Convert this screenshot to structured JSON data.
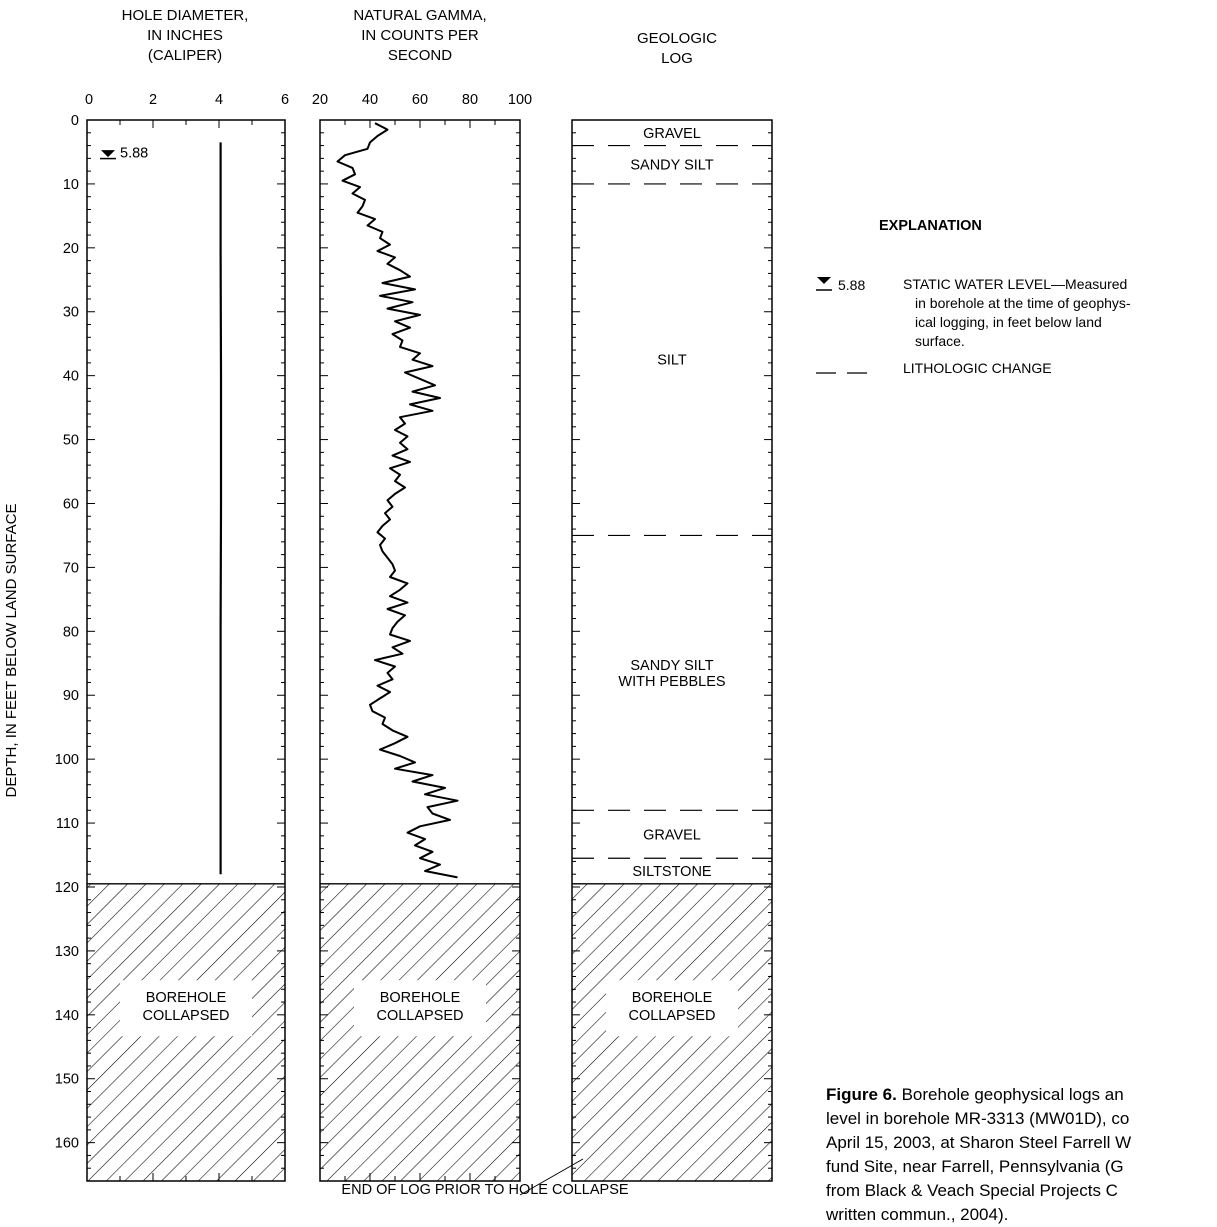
{
  "chart_data": {
    "type": "line",
    "y_axis": {
      "label": "DEPTH, IN FEET BELOW LAND SURFACE",
      "range": [
        0,
        166
      ],
      "ticks": [
        0,
        10,
        20,
        30,
        40,
        50,
        60,
        70,
        80,
        90,
        100,
        110,
        120,
        130,
        140,
        150,
        160
      ],
      "tick_labels": [
        "0",
        "10",
        "20",
        "30",
        "40",
        "50",
        "60",
        "70",
        "80",
        "90",
        "100",
        "110",
        "120",
        "130",
        "140",
        "150",
        "160"
      ],
      "inverted": true
    },
    "tracks": [
      {
        "title_lines": [
          "HOLE DIAMETER,",
          "IN INCHES",
          "(CALIPER)"
        ],
        "x_range": [
          0,
          6
        ],
        "x_ticks": [
          0,
          2,
          4,
          6
        ],
        "x_tick_labels": [
          "0",
          "2",
          "4",
          "6"
        ],
        "series": {
          "depth": [
            3.5,
            20,
            40,
            60,
            80,
            100,
            118
          ],
          "value": [
            4.05,
            4.05,
            4.06,
            4.06,
            4.05,
            4.05,
            4.05
          ]
        },
        "collapsed_label_lines": [
          "BOREHOLE",
          "COLLAPSED"
        ]
      },
      {
        "title_lines": [
          "NATURAL GAMMA,",
          "IN COUNTS PER",
          "SECOND"
        ],
        "x_range": [
          20,
          100
        ],
        "x_ticks": [
          20,
          40,
          60,
          80,
          100
        ],
        "x_tick_labels": [
          "20",
          "40",
          "60",
          "80",
          "100"
        ],
        "series": {
          "depth": [
            0.5,
            1.5,
            2.5,
            3.5,
            4.5,
            5.5,
            6.5,
            7.5,
            8.5,
            9.5,
            10.5,
            11.5,
            12.5,
            13.5,
            14.5,
            15.5,
            16.5,
            17.5,
            18.5,
            19.5,
            20.5,
            21.5,
            22.5,
            23.5,
            24.5,
            25.5,
            26.5,
            27.5,
            28.5,
            29.5,
            30.5,
            31.5,
            32.5,
            33.5,
            34.5,
            35.5,
            36.5,
            37.5,
            38.5,
            39.5,
            40.5,
            41.5,
            42.5,
            43.5,
            44.5,
            45.5,
            46.5,
            47.5,
            48.5,
            49.5,
            50.5,
            51.5,
            52.5,
            53.5,
            54.5,
            55.5,
            56.5,
            57.5,
            58.5,
            59.5,
            60.5,
            61.5,
            62.5,
            63.5,
            64.5,
            65.5,
            66.5,
            67.5,
            68.5,
            69.5,
            70.5,
            71.5,
            72.5,
            73.5,
            74.5,
            75.5,
            76.5,
            77.5,
            78.5,
            79.5,
            80.5,
            81.5,
            82.5,
            83.5,
            84.5,
            85.5,
            86.5,
            87.5,
            88.5,
            89.5,
            90.5,
            91.5,
            92.5,
            93.5,
            94.5,
            95.5,
            96.5,
            97.5,
            98.5,
            99.5,
            100.5,
            101.5,
            102.5,
            103.5,
            104.5,
            105.5,
            106.5,
            107.5,
            108.5,
            109.5,
            110.5,
            111.5,
            112.5,
            113.5,
            114.5,
            115.5,
            116.5,
            117.5,
            118.5
          ],
          "value": [
            42,
            47,
            43,
            40,
            39,
            30,
            27,
            33,
            34,
            29,
            36,
            33,
            38,
            37,
            35,
            42,
            39,
            45,
            44,
            48,
            43,
            50,
            47,
            52,
            56,
            45,
            58,
            44,
            57,
            47,
            60,
            50,
            56,
            49,
            53,
            52,
            60,
            57,
            65,
            54,
            60,
            66,
            57,
            68,
            56,
            65,
            52,
            54,
            50,
            55,
            52,
            55,
            49,
            56,
            48,
            52,
            50,
            54,
            50,
            47,
            49,
            46,
            48,
            45,
            43,
            46,
            44,
            45,
            47,
            49,
            50,
            48,
            55,
            52,
            48,
            55,
            47,
            54,
            51,
            49,
            48,
            56,
            49,
            53,
            42,
            50,
            47,
            49,
            43,
            48,
            44,
            40,
            41,
            46,
            45,
            49,
            55,
            50,
            44,
            52,
            58,
            50,
            65,
            57,
            70,
            62,
            75,
            63,
            65,
            72,
            60,
            55,
            62,
            58,
            65,
            60,
            68,
            62,
            75
          ]
        },
        "collapsed_label_lines": [
          "BOREHOLE",
          "COLLAPSED"
        ]
      },
      {
        "title_lines": [
          "GEOLOGIC",
          "LOG"
        ],
        "units": [
          {
            "top": 0,
            "bottom": 4,
            "label_lines": [
              "GRAVEL"
            ]
          },
          {
            "top": 4,
            "bottom": 10,
            "label_lines": [
              "SANDY SILT"
            ]
          },
          {
            "top": 10,
            "bottom": 65,
            "label_lines": [
              "SILT"
            ]
          },
          {
            "top": 65,
            "bottom": 108,
            "label_lines": [
              "SANDY SILT",
              "WITH PEBBLES"
            ]
          },
          {
            "top": 108,
            "bottom": 115.5,
            "label_lines": [
              "GRAVEL"
            ]
          },
          {
            "top": 115.5,
            "bottom": 119.5,
            "label_lines": [
              "SILTSTONE"
            ]
          }
        ],
        "collapsed_label_lines": [
          "BOREHOLE",
          "COLLAPSED"
        ]
      }
    ],
    "collapse_depth": 119.5,
    "water_level": {
      "depth": 5.88,
      "label": "5.88"
    },
    "annotation": "END OF LOG PRIOR TO HOLE COLLAPSE",
    "legend": {
      "title": "EXPLANATION",
      "placement": "right",
      "items": [
        {
          "symbol": "water-level-triangle",
          "symbol_label": "5.88",
          "lines": [
            "STATIC WATER LEVEL—Measured",
            "in borehole at the time of geophys-",
            "ical logging, in feet below land",
            "surface."
          ]
        },
        {
          "symbol": "dashed-line",
          "lines": [
            "LITHOLOGIC CHANGE"
          ]
        }
      ]
    }
  },
  "caption": {
    "label": "Figure 6.",
    "lines": [
      " Borehole geophysical logs an",
      "level in borehole MR-3313 (MW01D), co",
      "April 15, 2003, at Sharon Steel Farrell W",
      "fund Site, near Farrell, Pennsylvania (G",
      "from Black & Veach Special Projects C",
      "written commun., 2004)."
    ]
  }
}
